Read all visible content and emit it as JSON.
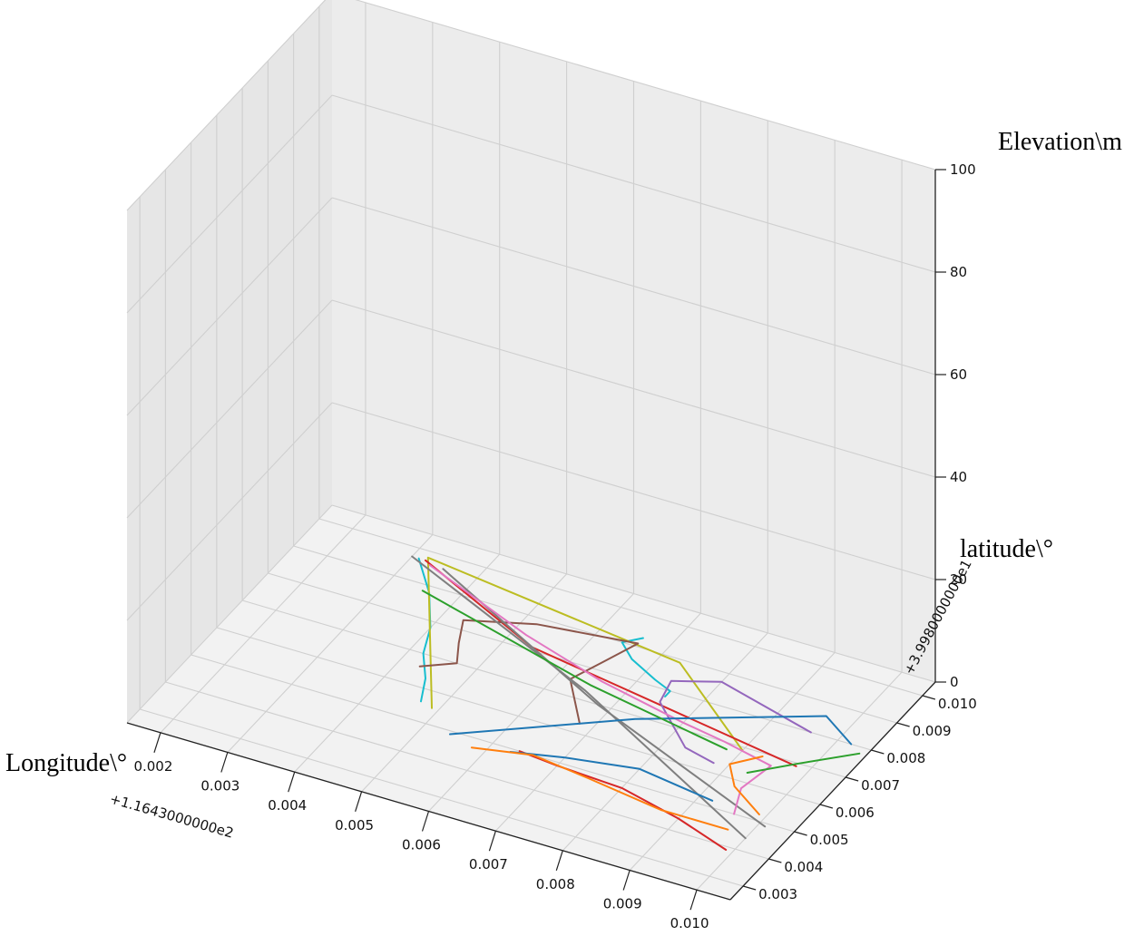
{
  "chart_data": {
    "type": "line",
    "projection": "3d",
    "title": "",
    "xlabel": "Longitude\\°",
    "ylabel": "latitude\\°",
    "zlabel": "Elevation\\m",
    "x_offset_label": "+1.1643000000e2",
    "y_offset_label": "+3.9980000000e1",
    "x_ticks": [
      "0.002",
      "0.003",
      "0.004",
      "0.005",
      "0.006",
      "0.007",
      "0.008",
      "0.009",
      "0.010"
    ],
    "y_ticks": [
      "0.003",
      "0.004",
      "0.005",
      "0.006",
      "0.007",
      "0.008",
      "0.009",
      "0.010"
    ],
    "z_ticks": [
      "0",
      "20",
      "40",
      "60",
      "80",
      "100"
    ],
    "xlim": [
      0.0015,
      0.0105
    ],
    "ylim": [
      0.0025,
      0.0105
    ],
    "zlim": [
      0,
      100
    ],
    "grid": true,
    "colors": {
      "pane_left": "#e6e6e6",
      "pane_back": "#ececec",
      "pane_floor": "#f2f2f2",
      "grid": "#cfcfcf"
    },
    "series": [
      {
        "color": "#17becf",
        "points": [
          [
            0.0047,
            0.0056
          ],
          [
            0.0045,
            0.0063
          ],
          [
            0.0042,
            0.007
          ],
          [
            0.004,
            0.0078
          ],
          [
            0.0036,
            0.0088
          ],
          [
            0.0031,
            0.0097
          ]
        ],
        "z": 0
      },
      {
        "color": "#17becf",
        "points": [
          [
            0.0066,
            0.0093
          ],
          [
            0.0064,
            0.009
          ],
          [
            0.0067,
            0.0086
          ],
          [
            0.0072,
            0.0082
          ],
          [
            0.0075,
            0.008
          ],
          [
            0.0075,
            0.0078
          ]
        ],
        "z": 0
      },
      {
        "color": "#bcbd22",
        "points": [
          [
            0.0049,
            0.0055
          ],
          [
            0.0032,
            0.0098
          ],
          [
            0.0073,
            0.0089
          ],
          [
            0.009,
            0.0069
          ]
        ],
        "z": 0
      },
      {
        "color": "#d62728",
        "points": [
          [
            0.0032,
            0.0097
          ],
          [
            0.0054,
            0.0081
          ],
          [
            0.0098,
            0.0069
          ]
        ],
        "z": 0
      },
      {
        "color": "#d62728",
        "points": [
          [
            0.0064,
            0.005
          ],
          [
            0.007,
            0.0049
          ],
          [
            0.008,
            0.0048
          ],
          [
            0.009,
            0.0044
          ],
          [
            0.0099,
            0.0039
          ]
        ],
        "z": 0
      },
      {
        "color": "#8c564b",
        "points": [
          [
            0.0043,
            0.0066
          ],
          [
            0.0047,
            0.007
          ],
          [
            0.0045,
            0.0076
          ],
          [
            0.0043,
            0.0083
          ],
          [
            0.0052,
            0.0088
          ],
          [
            0.0066,
            0.0091
          ],
          [
            0.0064,
            0.0083
          ],
          [
            0.0062,
            0.0075
          ],
          [
            0.0068,
            0.0063
          ]
        ],
        "z": 0
      },
      {
        "color": "#9467bd",
        "points": [
          [
            0.0096,
            0.008
          ],
          [
            0.008,
            0.0087
          ],
          [
            0.0074,
            0.0083
          ],
          [
            0.0075,
            0.0076
          ],
          [
            0.0083,
            0.0065
          ],
          [
            0.0088,
            0.0063
          ]
        ],
        "z": 0
      },
      {
        "color": "#7f7f7f",
        "points": [
          [
            0.003,
            0.0097
          ],
          [
            0.0065,
            0.0073
          ],
          [
            0.01,
            0.0044
          ]
        ],
        "z": 0
      },
      {
        "color": "#7f7f7f",
        "points": [
          [
            0.0035,
            0.0096
          ],
          [
            0.0068,
            0.007
          ],
          [
            0.0101,
            0.0049
          ]
        ],
        "z": 0
      },
      {
        "color": "#e377c2",
        "points": [
          [
            0.0033,
            0.0096
          ],
          [
            0.0052,
            0.0084
          ],
          [
            0.0066,
            0.0077
          ],
          [
            0.008,
            0.0072
          ],
          [
            0.0087,
            0.007
          ],
          [
            0.0095,
            0.0067
          ],
          [
            0.0094,
            0.0058
          ],
          [
            0.0096,
            0.005
          ]
        ],
        "z": 0
      },
      {
        "color": "#1f77b4",
        "points": [
          [
            0.0054,
            0.0049
          ],
          [
            0.0074,
            0.0069
          ],
          [
            0.0096,
            0.0086
          ],
          [
            0.0102,
            0.008
          ]
        ],
        "z": 0
      },
      {
        "color": "#1f77b4",
        "points": [
          [
            0.0063,
            0.0049
          ],
          [
            0.007,
            0.0052
          ],
          [
            0.008,
            0.0055
          ],
          [
            0.0092,
            0.0052
          ]
        ],
        "z": 0
      },
      {
        "color": "#2ca02c",
        "points": [
          [
            0.0035,
            0.0088
          ],
          [
            0.0065,
            0.0075
          ],
          [
            0.0088,
            0.0068
          ]
        ],
        "z": 0
      },
      {
        "color": "#2ca02c",
        "points": [
          [
            0.0093,
            0.0063
          ],
          [
            0.0098,
            0.007
          ],
          [
            0.0104,
            0.0078
          ]
        ],
        "z": 0
      },
      {
        "color": "#ff7f0e",
        "points": [
          [
            0.0058,
            0.0047
          ],
          [
            0.0066,
            0.005
          ],
          [
            0.0075,
            0.0048
          ],
          [
            0.0087,
            0.0045
          ],
          [
            0.0097,
            0.0045
          ]
        ],
        "z": 0
      },
      {
        "color": "#ff7f0e",
        "points": [
          [
            0.0093,
            0.0069
          ],
          [
            0.009,
            0.0064
          ],
          [
            0.0093,
            0.0058
          ],
          [
            0.0099,
            0.0052
          ]
        ],
        "z": 0
      }
    ]
  }
}
